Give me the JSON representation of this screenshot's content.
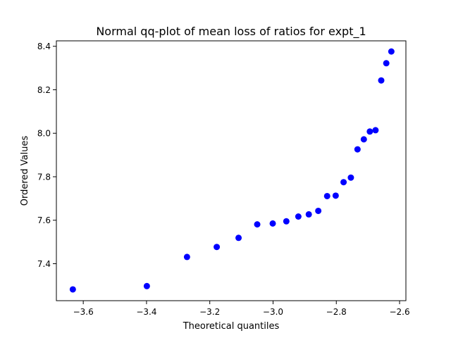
{
  "chart_data": {
    "type": "scatter",
    "title": "Normal qq-plot of mean loss of ratios for expt_1",
    "xlabel": "Theoretical quantiles",
    "ylabel": "Ordered Values",
    "xlim": [
      -3.685,
      -2.58
    ],
    "ylim": [
      7.23,
      8.425
    ],
    "xticks": [
      -3.6,
      -3.4,
      -3.2,
      -3.0,
      -2.8,
      -2.6
    ],
    "xtick_labels": [
      "−3.6",
      "−3.4",
      "−3.2",
      "−3.0",
      "−2.8",
      "−2.6"
    ],
    "yticks": [
      7.4,
      7.6,
      7.8,
      8.0,
      8.2,
      8.4
    ],
    "ytick_labels": [
      "7.4",
      "7.6",
      "7.8",
      "8.0",
      "8.2",
      "8.4"
    ],
    "grid": false,
    "marker_color": "#0000ff",
    "x": [
      -3.633,
      -3.399,
      -3.272,
      -3.178,
      -3.109,
      -3.05,
      -3.001,
      -2.958,
      -2.92,
      -2.887,
      -2.857,
      -2.829,
      -2.802,
      -2.777,
      -2.754,
      -2.733,
      -2.713,
      -2.694,
      -2.676,
      -2.658,
      -2.642,
      -2.626
    ],
    "y": [
      7.282,
      7.297,
      7.431,
      7.477,
      7.519,
      7.581,
      7.585,
      7.595,
      7.617,
      7.627,
      7.643,
      7.711,
      7.713,
      7.775,
      7.796,
      7.926,
      7.972,
      8.008,
      8.014,
      8.243,
      8.322,
      8.376
    ]
  }
}
